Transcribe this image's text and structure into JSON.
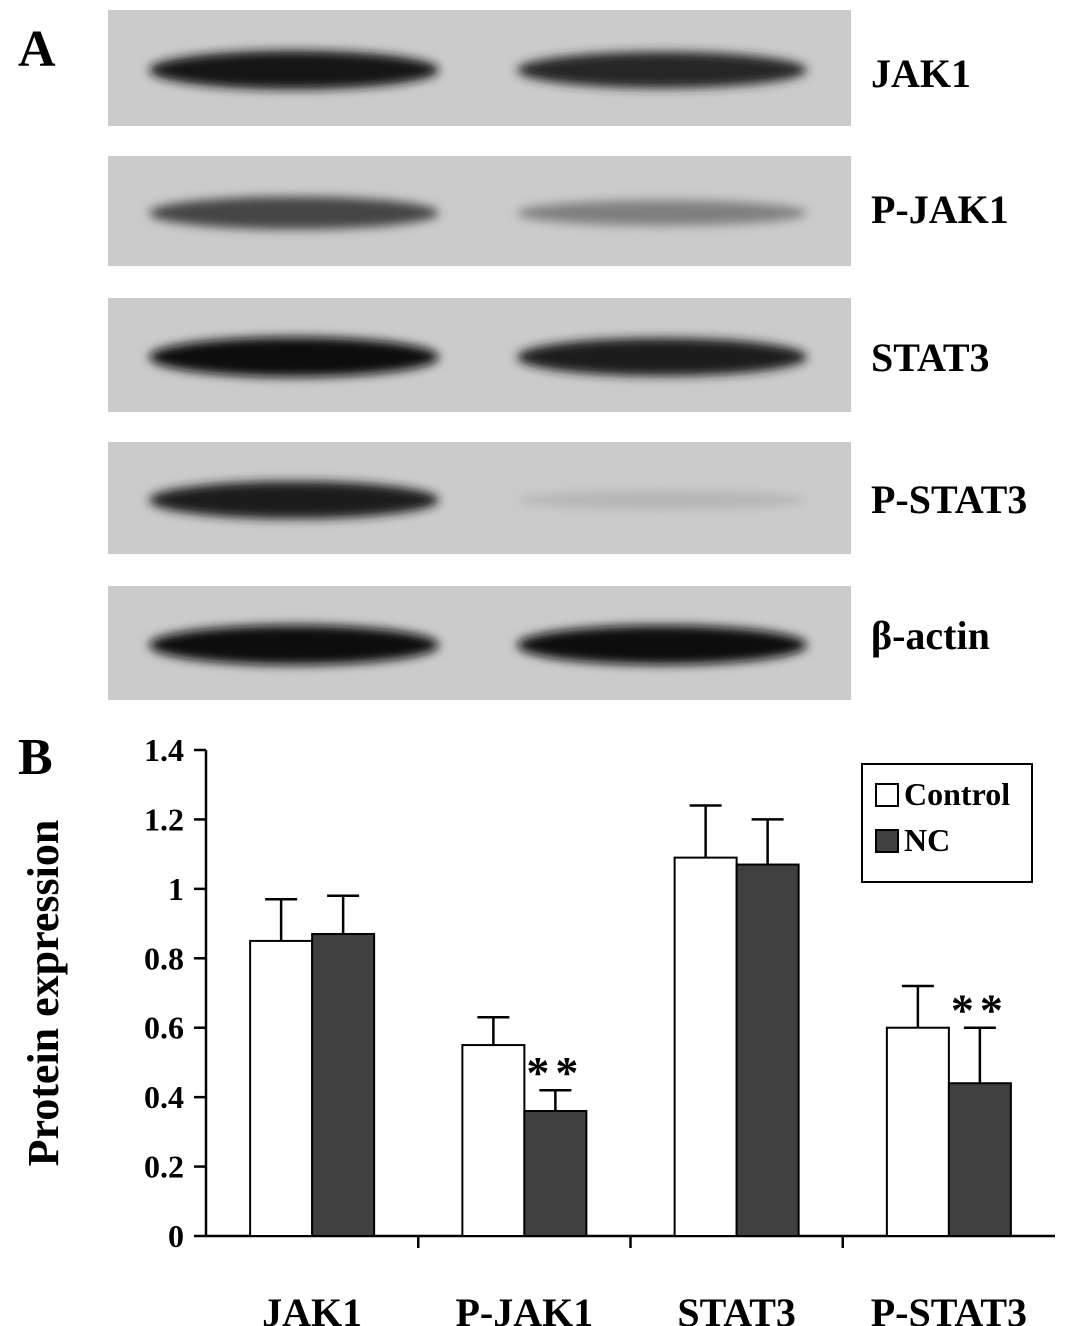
{
  "panel_a": {
    "letter": "A",
    "blots": [
      {
        "label": "JAK1",
        "lane1_intensity": 0.95,
        "lane2_intensity": 0.85
      },
      {
        "label": "P-JAK1",
        "lane1_intensity": 0.7,
        "lane2_intensity": 0.4
      },
      {
        "label": "STAT3",
        "lane1_intensity": 1.0,
        "lane2_intensity": 0.92
      },
      {
        "label": "P-STAT3",
        "lane1_intensity": 0.9,
        "lane2_intensity": 0.12
      },
      {
        "label": "β-actin",
        "lane1_intensity": 1.0,
        "lane2_intensity": 0.98
      }
    ]
  },
  "panel_b": {
    "letter": "B"
  },
  "chart_data": {
    "type": "bar",
    "title": "",
    "xlabel": "",
    "ylabel": "Protein expression",
    "ylim": [
      0,
      1.4
    ],
    "yticks": [
      "0",
      "0.2",
      "0.4",
      "0.6",
      "0.8",
      "1",
      "1.2",
      "1.4"
    ],
    "categories": [
      "JAK1",
      "P-JAK1",
      "STAT3",
      "P-STAT3"
    ],
    "series": [
      {
        "name": "Control",
        "color": "#ffffff",
        "values": [
          0.85,
          0.55,
          1.09,
          0.6
        ],
        "errors": [
          0.12,
          0.08,
          0.15,
          0.12
        ]
      },
      {
        "name": "NC",
        "color": "#404040",
        "values": [
          0.87,
          0.36,
          1.07,
          0.44
        ],
        "errors": [
          0.11,
          0.06,
          0.13,
          0.16
        ]
      }
    ],
    "significance": [
      {
        "category": "P-JAK1",
        "series": "NC",
        "text": "**"
      },
      {
        "category": "P-STAT3",
        "series": "NC",
        "text": "**"
      }
    ],
    "legend_position": "top-right",
    "grid": false
  }
}
